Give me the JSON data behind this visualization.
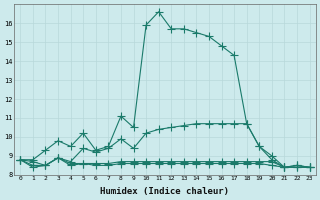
{
  "x": [
    0,
    1,
    2,
    3,
    4,
    5,
    6,
    7,
    8,
    9,
    10,
    11,
    12,
    13,
    14,
    15,
    16,
    17,
    18,
    19,
    20,
    21,
    22,
    23
  ],
  "line1": [
    8.8,
    8.8,
    9.3,
    9.8,
    9.5,
    10.2,
    9.3,
    9.5,
    11.1,
    10.5,
    15.9,
    16.6,
    15.7,
    15.7,
    15.5,
    15.3,
    14.8,
    14.3,
    10.7,
    9.5,
    8.8,
    8.4,
    8.5,
    8.4
  ],
  "line2": [
    8.8,
    8.7,
    8.5,
    8.9,
    8.7,
    9.4,
    9.2,
    9.4,
    9.9,
    9.4,
    10.2,
    10.4,
    10.5,
    10.6,
    10.7,
    10.7,
    10.7,
    10.7,
    10.7,
    9.5,
    9.0,
    8.4,
    8.5,
    8.4
  ],
  "line3": [
    8.8,
    8.5,
    8.5,
    8.9,
    8.6,
    8.6,
    8.6,
    8.6,
    8.7,
    8.7,
    8.7,
    8.7,
    8.7,
    8.7,
    8.7,
    8.7,
    8.7,
    8.7,
    8.7,
    8.7,
    8.7,
    8.4,
    8.4,
    8.4
  ],
  "line4": [
    8.8,
    8.4,
    8.5,
    8.9,
    8.5,
    8.6,
    8.5,
    8.5,
    8.6,
    8.6,
    8.6,
    8.6,
    8.6,
    8.6,
    8.6,
    8.6,
    8.6,
    8.6,
    8.6,
    8.6,
    8.5,
    8.4,
    8.4,
    8.4
  ],
  "color": "#1a7a6a",
  "bg_color": "#cdeaec",
  "grid_color": "#b8d8da",
  "ylim": [
    8,
    17
  ],
  "xlim_min": -0.5,
  "xlim_max": 23.5,
  "yticks": [
    8,
    9,
    10,
    11,
    12,
    13,
    14,
    15,
    16
  ],
  "xticks": [
    0,
    1,
    2,
    3,
    4,
    5,
    6,
    7,
    8,
    9,
    10,
    11,
    12,
    13,
    14,
    15,
    16,
    17,
    18,
    19,
    20,
    21,
    22,
    23
  ],
  "xlabel": "Humidex (Indice chaleur)",
  "markersize": 2.5,
  "linewidth": 0.8
}
